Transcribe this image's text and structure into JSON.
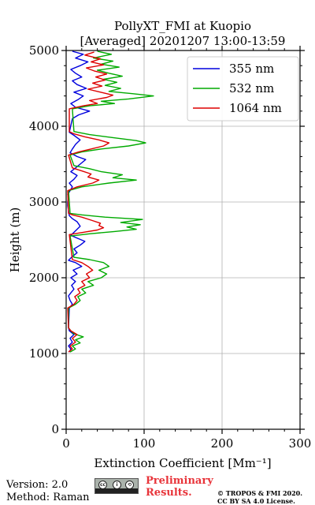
{
  "chart_data": {
    "type": "line",
    "title": [
      "PollyXT_FMI at Kuopio",
      "[Averaged] 20201207 13:00-13:59"
    ],
    "xlabel": "Extinction Coefficient [Mm⁻¹]",
    "ylabel": "Height (m)",
    "xlim": [
      0,
      300
    ],
    "ylim": [
      0,
      5000
    ],
    "xticks": [
      0,
      100,
      200,
      300
    ],
    "yticks": [
      0,
      1000,
      2000,
      3000,
      4000,
      5000
    ],
    "grid": true,
    "legend_position": "top-right",
    "series": [
      {
        "name": "355 nm",
        "color": "#0000dd",
        "points": [
          [
            4,
            1020
          ],
          [
            6,
            1060
          ],
          [
            3,
            1100
          ],
          [
            8,
            1150
          ],
          [
            5,
            1200
          ],
          [
            10,
            1250
          ],
          [
            4,
            1300
          ],
          [
            3,
            1340
          ],
          [
            4,
            1600
          ],
          [
            8,
            1650
          ],
          [
            5,
            1700
          ],
          [
            3,
            1760
          ],
          [
            6,
            1800
          ],
          [
            10,
            1850
          ],
          [
            7,
            1900
          ],
          [
            12,
            1950
          ],
          [
            6,
            2000
          ],
          [
            14,
            2050
          ],
          [
            9,
            2100
          ],
          [
            20,
            2150
          ],
          [
            12,
            2200
          ],
          [
            3,
            2230
          ],
          [
            8,
            2280
          ],
          [
            14,
            2330
          ],
          [
            10,
            2380
          ],
          [
            18,
            2430
          ],
          [
            24,
            2480
          ],
          [
            15,
            2520
          ],
          [
            6,
            2560
          ],
          [
            12,
            2620
          ],
          [
            18,
            2680
          ],
          [
            14,
            2740
          ],
          [
            8,
            2780
          ],
          [
            4,
            2820
          ],
          [
            2,
            2950
          ],
          [
            2,
            3000
          ],
          [
            3,
            3060
          ],
          [
            2,
            3100
          ],
          [
            5,
            3150
          ],
          [
            8,
            3200
          ],
          [
            4,
            3250
          ],
          [
            10,
            3300
          ],
          [
            14,
            3350
          ],
          [
            6,
            3400
          ],
          [
            12,
            3450
          ],
          [
            18,
            3500
          ],
          [
            25,
            3560
          ],
          [
            14,
            3600
          ],
          [
            5,
            3650
          ],
          [
            8,
            3700
          ],
          [
            12,
            3760
          ],
          [
            18,
            3820
          ],
          [
            10,
            3880
          ],
          [
            4,
            3920
          ],
          [
            8,
            4100
          ],
          [
            16,
            4150
          ],
          [
            30,
            4200
          ],
          [
            12,
            4250
          ],
          [
            6,
            4300
          ],
          [
            15,
            4350
          ],
          [
            22,
            4400
          ],
          [
            10,
            4450
          ],
          [
            26,
            4500
          ],
          [
            14,
            4550
          ],
          [
            8,
            4600
          ],
          [
            20,
            4650
          ],
          [
            12,
            4700
          ],
          [
            6,
            4750
          ],
          [
            18,
            4800
          ],
          [
            28,
            4850
          ],
          [
            12,
            4900
          ],
          [
            22,
            4950
          ],
          [
            8,
            4990
          ]
        ]
      },
      {
        "name": "532 nm",
        "color": "#00aa00",
        "points": [
          [
            5,
            1020
          ],
          [
            12,
            1060
          ],
          [
            8,
            1100
          ],
          [
            18,
            1140
          ],
          [
            12,
            1180
          ],
          [
            22,
            1220
          ],
          [
            10,
            1260
          ],
          [
            6,
            1300
          ],
          [
            3,
            1340
          ],
          [
            3,
            1600
          ],
          [
            12,
            1650
          ],
          [
            18,
            1700
          ],
          [
            15,
            1750
          ],
          [
            25,
            1800
          ],
          [
            20,
            1850
          ],
          [
            35,
            1900
          ],
          [
            28,
            1950
          ],
          [
            45,
            2000
          ],
          [
            52,
            2050
          ],
          [
            42,
            2100
          ],
          [
            55,
            2150
          ],
          [
            48,
            2200
          ],
          [
            30,
            2240
          ],
          [
            10,
            2270
          ],
          [
            5,
            2550
          ],
          [
            30,
            2580
          ],
          [
            62,
            2610
          ],
          [
            90,
            2640
          ],
          [
            78,
            2670
          ],
          [
            95,
            2700
          ],
          [
            70,
            2730
          ],
          [
            98,
            2770
          ],
          [
            50,
            2800
          ],
          [
            20,
            2830
          ],
          [
            5,
            2850
          ],
          [
            3,
            3150
          ],
          [
            20,
            3200
          ],
          [
            55,
            3250
          ],
          [
            90,
            3290
          ],
          [
            60,
            3320
          ],
          [
            72,
            3360
          ],
          [
            45,
            3400
          ],
          [
            30,
            3440
          ],
          [
            10,
            3480
          ],
          [
            5,
            3620
          ],
          [
            20,
            3660
          ],
          [
            45,
            3700
          ],
          [
            80,
            3740
          ],
          [
            102,
            3780
          ],
          [
            90,
            3810
          ],
          [
            60,
            3850
          ],
          [
            30,
            3890
          ],
          [
            10,
            3930
          ],
          [
            8,
            4230
          ],
          [
            30,
            4270
          ],
          [
            62,
            4300
          ],
          [
            45,
            4330
          ],
          [
            80,
            4360
          ],
          [
            112,
            4400
          ],
          [
            85,
            4430
          ],
          [
            55,
            4460
          ],
          [
            70,
            4500
          ],
          [
            50,
            4540
          ],
          [
            65,
            4580
          ],
          [
            48,
            4620
          ],
          [
            72,
            4660
          ],
          [
            55,
            4700
          ],
          [
            40,
            4740
          ],
          [
            68,
            4780
          ],
          [
            45,
            4820
          ],
          [
            60,
            4860
          ],
          [
            35,
            4900
          ],
          [
            58,
            4950
          ],
          [
            40,
            4990
          ]
        ]
      },
      {
        "name": "1064 nm",
        "color": "#dd0000",
        "points": [
          [
            3,
            1020
          ],
          [
            8,
            1060
          ],
          [
            5,
            1100
          ],
          [
            12,
            1150
          ],
          [
            8,
            1200
          ],
          [
            14,
            1250
          ],
          [
            6,
            1300
          ],
          [
            3,
            1340
          ],
          [
            2,
            1600
          ],
          [
            10,
            1650
          ],
          [
            14,
            1700
          ],
          [
            11,
            1750
          ],
          [
            18,
            1800
          ],
          [
            15,
            1850
          ],
          [
            24,
            1900
          ],
          [
            20,
            1950
          ],
          [
            30,
            2000
          ],
          [
            26,
            2050
          ],
          [
            34,
            2100
          ],
          [
            28,
            2150
          ],
          [
            20,
            2200
          ],
          [
            8,
            2240
          ],
          [
            4,
            2570
          ],
          [
            22,
            2600
          ],
          [
            40,
            2630
          ],
          [
            48,
            2660
          ],
          [
            42,
            2690
          ],
          [
            44,
            2720
          ],
          [
            32,
            2760
          ],
          [
            20,
            2800
          ],
          [
            8,
            2830
          ],
          [
            3,
            2850
          ],
          [
            2,
            3150
          ],
          [
            14,
            3200
          ],
          [
            34,
            3250
          ],
          [
            42,
            3290
          ],
          [
            28,
            3330
          ],
          [
            32,
            3370
          ],
          [
            20,
            3410
          ],
          [
            8,
            3450
          ],
          [
            3,
            3620
          ],
          [
            16,
            3660
          ],
          [
            32,
            3700
          ],
          [
            48,
            3740
          ],
          [
            55,
            3780
          ],
          [
            42,
            3820
          ],
          [
            24,
            3860
          ],
          [
            10,
            3900
          ],
          [
            4,
            3930
          ],
          [
            4,
            4230
          ],
          [
            22,
            4270
          ],
          [
            40,
            4300
          ],
          [
            30,
            4340
          ],
          [
            52,
            4380
          ],
          [
            60,
            4410
          ],
          [
            44,
            4450
          ],
          [
            28,
            4490
          ],
          [
            46,
            4530
          ],
          [
            34,
            4570
          ],
          [
            50,
            4610
          ],
          [
            38,
            4650
          ],
          [
            52,
            4690
          ],
          [
            36,
            4730
          ],
          [
            26,
            4770
          ],
          [
            48,
            4810
          ],
          [
            32,
            4850
          ],
          [
            44,
            4890
          ],
          [
            24,
            4940
          ],
          [
            36,
            4980
          ]
        ]
      }
    ]
  },
  "footer": {
    "version": "Version: 2.0",
    "method": "Method: Raman",
    "cc_icons": [
      "cc-icon",
      "by-icon",
      "sa-icon"
    ],
    "preliminary_line1": "Preliminary",
    "preliminary_line2": "Results.",
    "copyright_line1": "© TROPOS & FMI 2020.",
    "copyright_line2": "CC BY SA 4.0 License."
  }
}
